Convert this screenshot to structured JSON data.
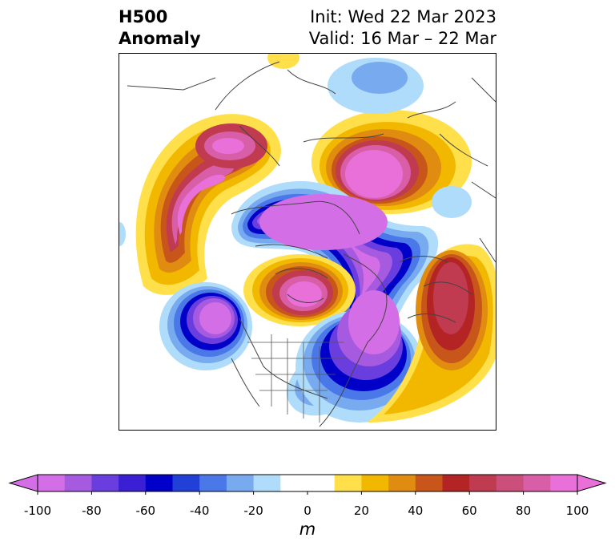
{
  "header": {
    "title_line1": "H500",
    "title_line2": "Anomaly",
    "init_text": "Init: Wed 22 Mar 2023",
    "valid_text": "Valid: 16 Mar – 22 Mar"
  },
  "colorbar": {
    "unit": "m",
    "tick_labels": [
      "-100",
      "-80",
      "-60",
      "-40",
      "-20",
      "0",
      "20",
      "40",
      "60",
      "80",
      "100"
    ],
    "tick_values": [
      -100,
      -80,
      -60,
      -40,
      -20,
      0,
      20,
      40,
      60,
      80,
      100
    ],
    "range": [
      -100,
      100
    ],
    "bins": [
      {
        "from": -100,
        "to": -90,
        "color": "#d46ee6"
      },
      {
        "from": -90,
        "to": -80,
        "color": "#a65ae0"
      },
      {
        "from": -80,
        "to": -70,
        "color": "#6a3ede"
      },
      {
        "from": -70,
        "to": -60,
        "color": "#3a1fd4"
      },
      {
        "from": -60,
        "to": -50,
        "color": "#0000c8"
      },
      {
        "from": -50,
        "to": -40,
        "color": "#2040d8"
      },
      {
        "from": -40,
        "to": -30,
        "color": "#4a78e8"
      },
      {
        "from": -30,
        "to": -20,
        "color": "#78aaf0"
      },
      {
        "from": -20,
        "to": -10,
        "color": "#aedcfa"
      },
      {
        "from": -10,
        "to": 10,
        "color": "#ffffff"
      },
      {
        "from": 10,
        "to": 20,
        "color": "#ffe04a"
      },
      {
        "from": 20,
        "to": 30,
        "color": "#f2b800"
      },
      {
        "from": 30,
        "to": 40,
        "color": "#e08c10"
      },
      {
        "from": 40,
        "to": 50,
        "color": "#c8561a"
      },
      {
        "from": 50,
        "to": 60,
        "color": "#b42424"
      },
      {
        "from": 60,
        "to": 70,
        "color": "#c03a50"
      },
      {
        "from": 70,
        "to": 80,
        "color": "#cc4e7a"
      },
      {
        "from": 80,
        "to": 90,
        "color": "#d85ea8"
      },
      {
        "from": 90,
        "to": 100,
        "color": "#e870d8"
      }
    ],
    "extend": "both",
    "under_color": "#d46ee6",
    "over_color": "#e870d8"
  },
  "map": {
    "projection": "polar stereographic",
    "region": "North America / Arctic",
    "field": "500 hPa geopotential height anomaly"
  }
}
